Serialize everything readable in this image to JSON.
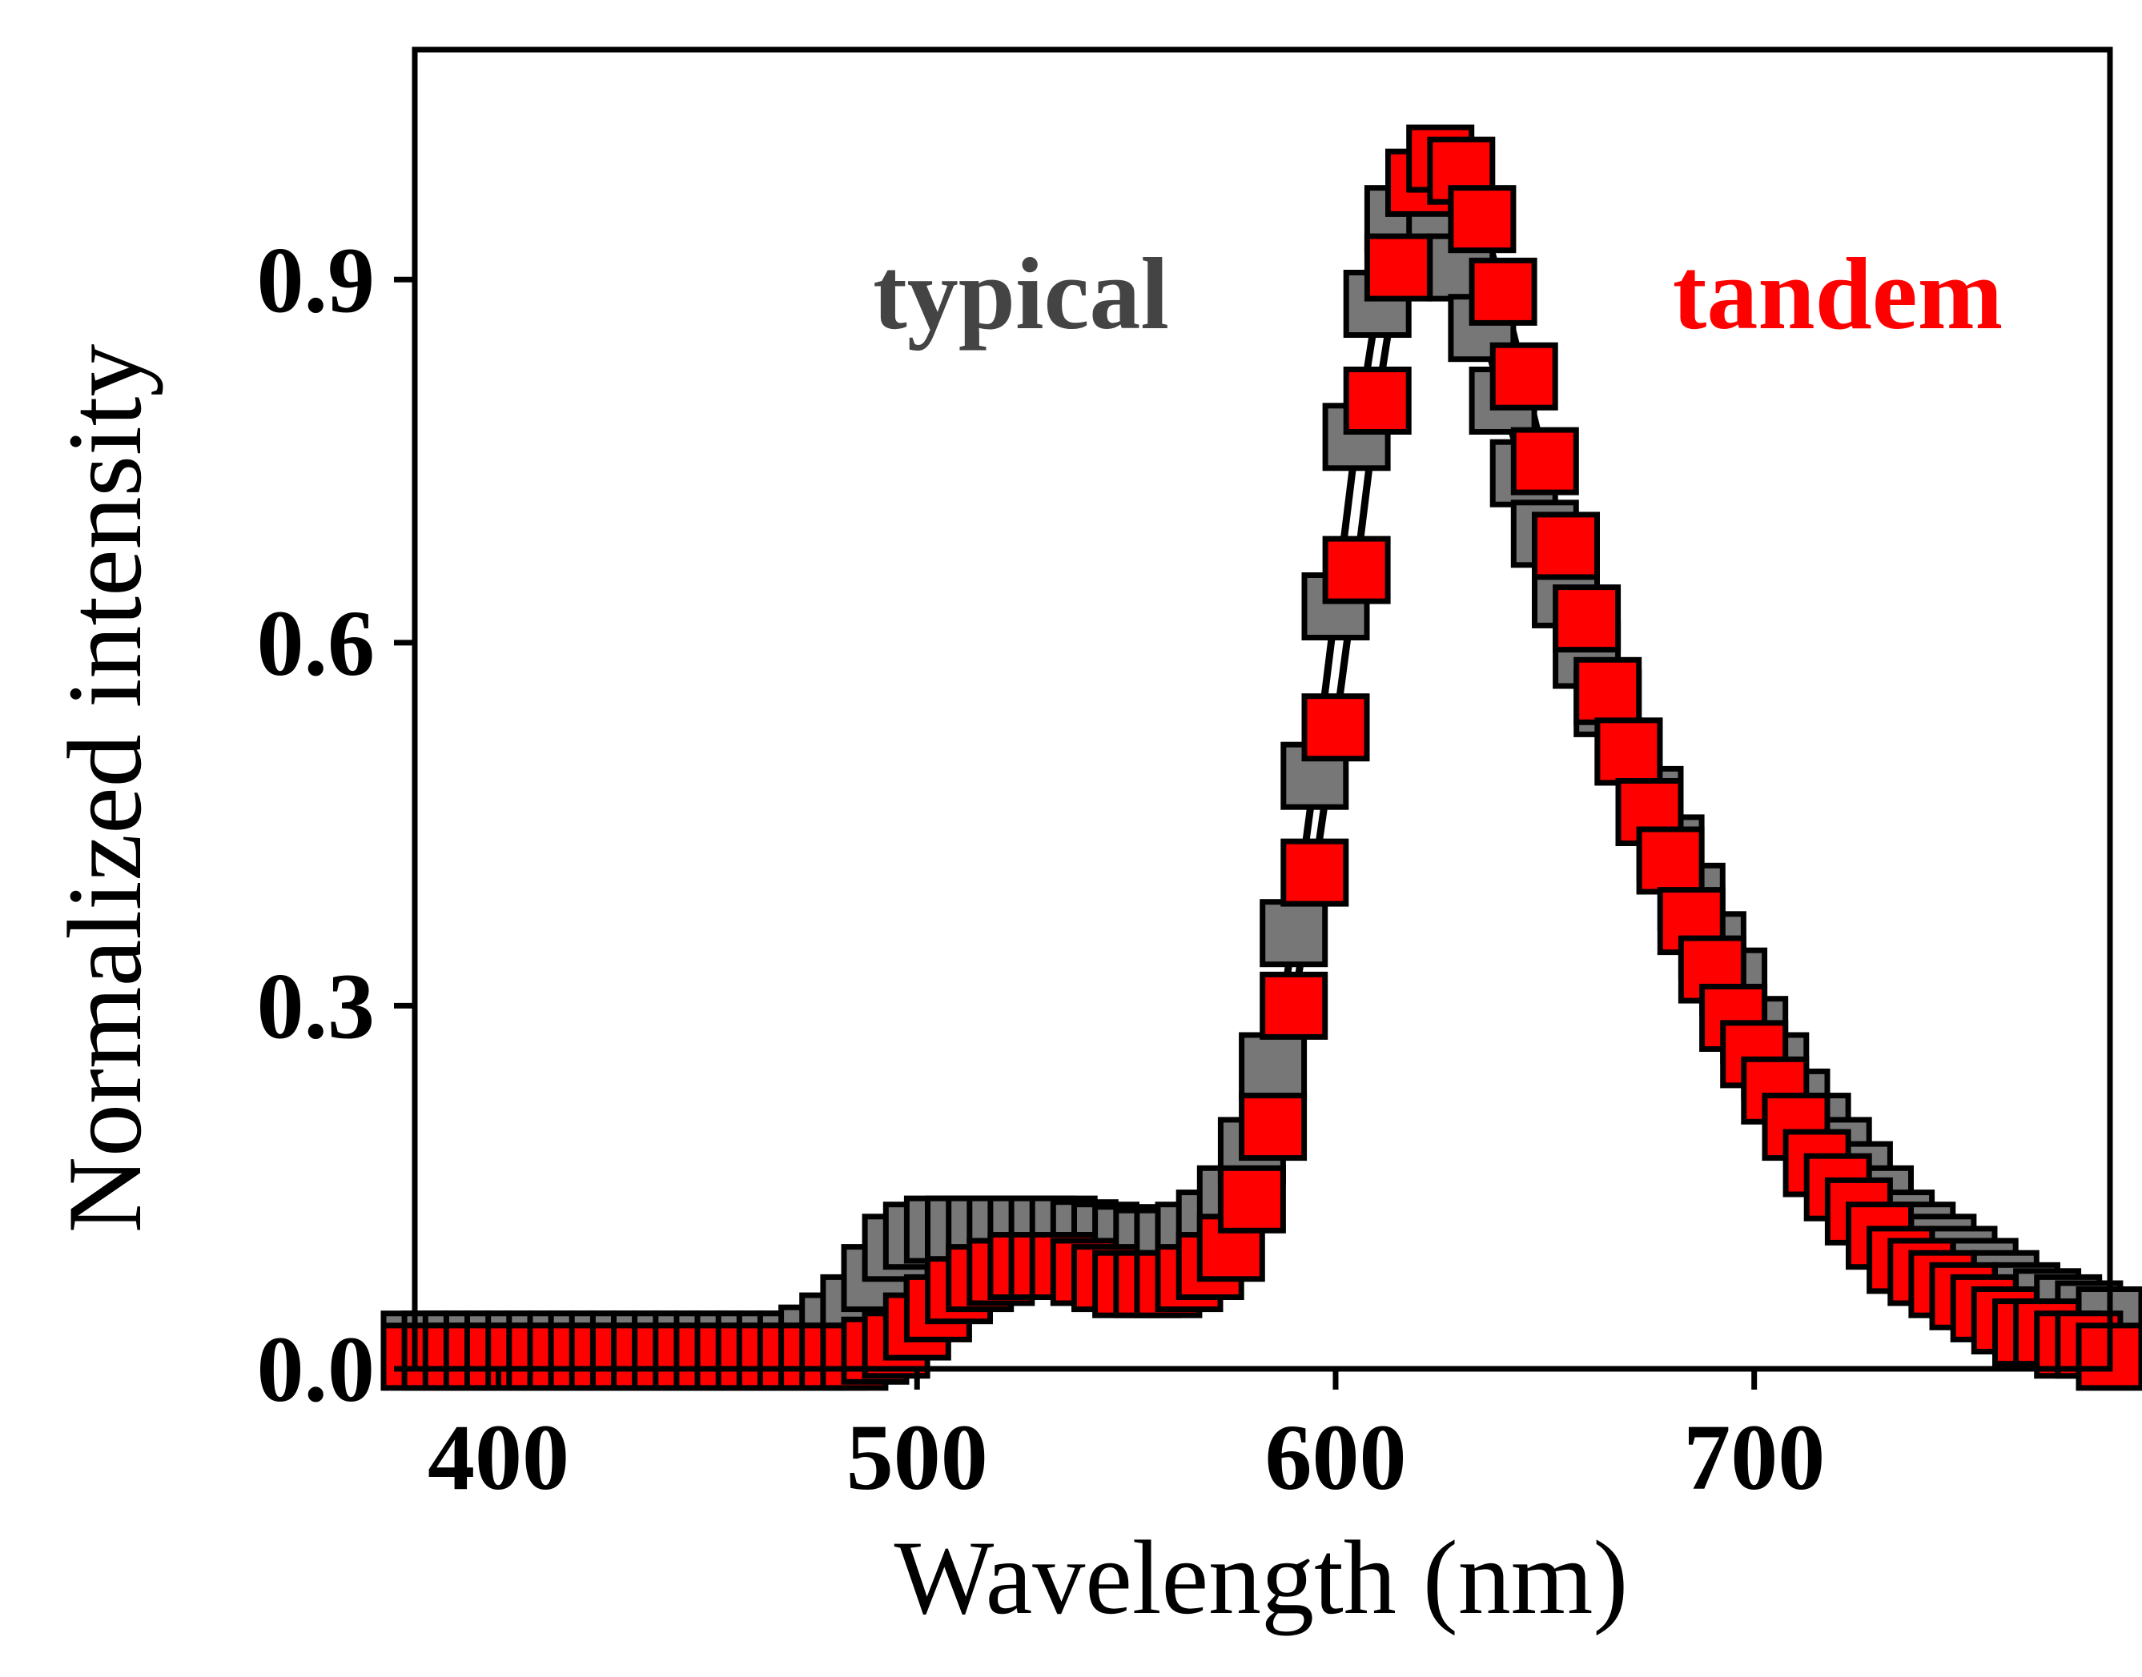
{
  "chart_data": {
    "type": "scatter",
    "title": "",
    "xlabel": "Wavelength (nm)",
    "ylabel": "Normalized intensity",
    "xlim": [
      380,
      785
    ],
    "ylim": [
      0,
      1.09
    ],
    "xticks": [
      400,
      500,
      600,
      700
    ],
    "yticks": [
      0.0,
      0.3,
      0.6,
      0.9
    ],
    "xtick_labels": [
      "400",
      "500",
      "600",
      "700"
    ],
    "ytick_labels": [
      "0.0",
      "0.3",
      "0.6",
      "0.9"
    ],
    "grid": false,
    "legend": "annotations-top",
    "x": [
      380,
      385,
      390,
      395,
      400,
      405,
      410,
      415,
      420,
      425,
      430,
      435,
      440,
      445,
      450,
      455,
      460,
      465,
      470,
      475,
      480,
      485,
      490,
      495,
      500,
      505,
      510,
      515,
      520,
      525,
      530,
      535,
      540,
      545,
      550,
      555,
      560,
      565,
      570,
      575,
      580,
      585,
      590,
      595,
      600,
      605,
      610,
      615,
      620,
      625,
      630,
      635,
      640,
      645,
      650,
      655,
      660,
      665,
      670,
      675,
      680,
      685,
      690,
      695,
      700,
      705,
      710,
      715,
      720,
      725,
      730,
      735,
      740,
      745,
      750,
      755,
      760,
      765,
      770,
      775,
      780,
      785
    ],
    "series": [
      {
        "name": "typical",
        "color": "#777777",
        "values": [
          0.02,
          0.02,
          0.02,
          0.02,
          0.02,
          0.02,
          0.02,
          0.02,
          0.02,
          0.02,
          0.02,
          0.02,
          0.02,
          0.02,
          0.02,
          0.02,
          0.02,
          0.02,
          0.02,
          0.025,
          0.035,
          0.05,
          0.075,
          0.1,
          0.11,
          0.115,
          0.115,
          0.115,
          0.115,
          0.115,
          0.115,
          0.115,
          0.112,
          0.11,
          0.108,
          0.105,
          0.105,
          0.11,
          0.12,
          0.14,
          0.18,
          0.25,
          0.36,
          0.49,
          0.63,
          0.77,
          0.88,
          0.95,
          0.98,
          0.96,
          0.91,
          0.86,
          0.8,
          0.74,
          0.69,
          0.64,
          0.59,
          0.55,
          0.51,
          0.47,
          0.43,
          0.39,
          0.35,
          0.32,
          0.28,
          0.25,
          0.22,
          0.2,
          0.18,
          0.16,
          0.14,
          0.12,
          0.11,
          0.1,
          0.09,
          0.08,
          0.07,
          0.06,
          0.055,
          0.05,
          0.045,
          0.04
        ]
      },
      {
        "name": "tandem",
        "color": "#ff0000",
        "values": [
          0.01,
          0.01,
          0.01,
          0.01,
          0.01,
          0.01,
          0.01,
          0.01,
          0.01,
          0.01,
          0.01,
          0.01,
          0.01,
          0.01,
          0.01,
          0.01,
          0.01,
          0.01,
          0.01,
          0.01,
          0.01,
          0.01,
          0.015,
          0.02,
          0.035,
          0.05,
          0.065,
          0.075,
          0.08,
          0.085,
          0.085,
          0.085,
          0.08,
          0.075,
          0.07,
          0.07,
          0.07,
          0.075,
          0.085,
          0.1,
          0.14,
          0.2,
          0.3,
          0.41,
          0.53,
          0.66,
          0.8,
          0.91,
          0.98,
          1.0,
          0.99,
          0.95,
          0.89,
          0.82,
          0.75,
          0.68,
          0.62,
          0.56,
          0.51,
          0.46,
          0.42,
          0.37,
          0.33,
          0.29,
          0.26,
          0.23,
          0.2,
          0.17,
          0.15,
          0.13,
          0.11,
          0.09,
          0.08,
          0.07,
          0.06,
          0.05,
          0.04,
          0.03,
          0.03,
          0.02,
          0.02,
          0.01
        ]
      }
    ]
  }
}
